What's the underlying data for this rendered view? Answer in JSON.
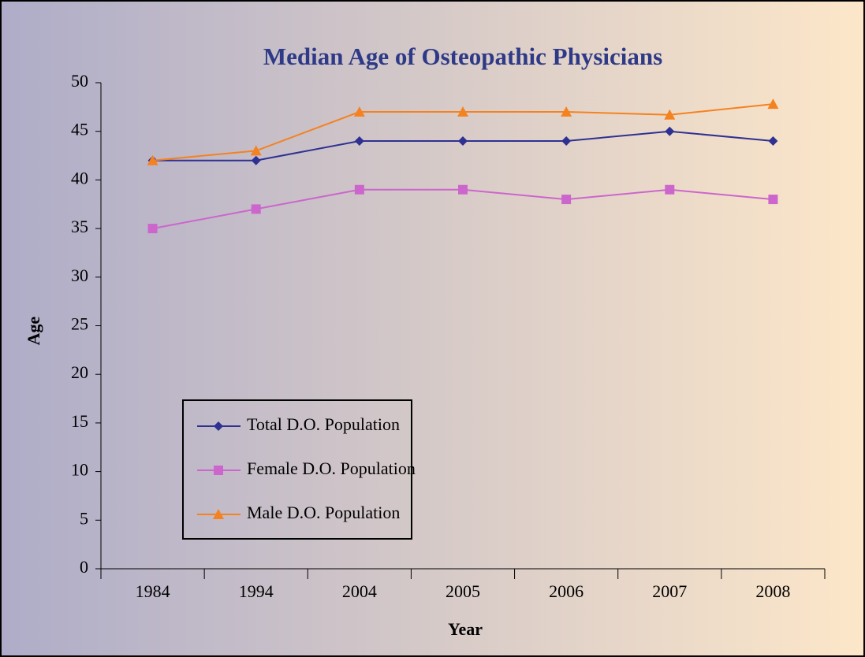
{
  "chart_data": {
    "type": "line",
    "title": "Median Age of Osteopathic Physicians",
    "x_label": "Year",
    "y_label": "Age",
    "categories": [
      "1984",
      "1994",
      "2004",
      "2005",
      "2006",
      "2007",
      "2008"
    ],
    "series": [
      {
        "name": "Total D.O. Population",
        "color": "#2e3192",
        "marker": "diamond",
        "values": [
          42,
          42,
          44,
          44,
          44,
          45,
          44
        ]
      },
      {
        "name": "Female D.O. Population",
        "color": "#cc66cc",
        "marker": "square",
        "values": [
          35,
          37,
          39,
          39,
          38,
          39,
          38
        ]
      },
      {
        "name": "Male D.O. Population",
        "color": "#f58220",
        "marker": "triangle",
        "values": [
          42,
          43,
          47,
          47,
          47,
          46.7,
          47.8
        ]
      }
    ],
    "ylim": [
      0,
      50
    ],
    "yticks": [
      0,
      5,
      10,
      15,
      20,
      25,
      30,
      35,
      40,
      45,
      50
    ],
    "legend": "lower left",
    "grid": false
  }
}
